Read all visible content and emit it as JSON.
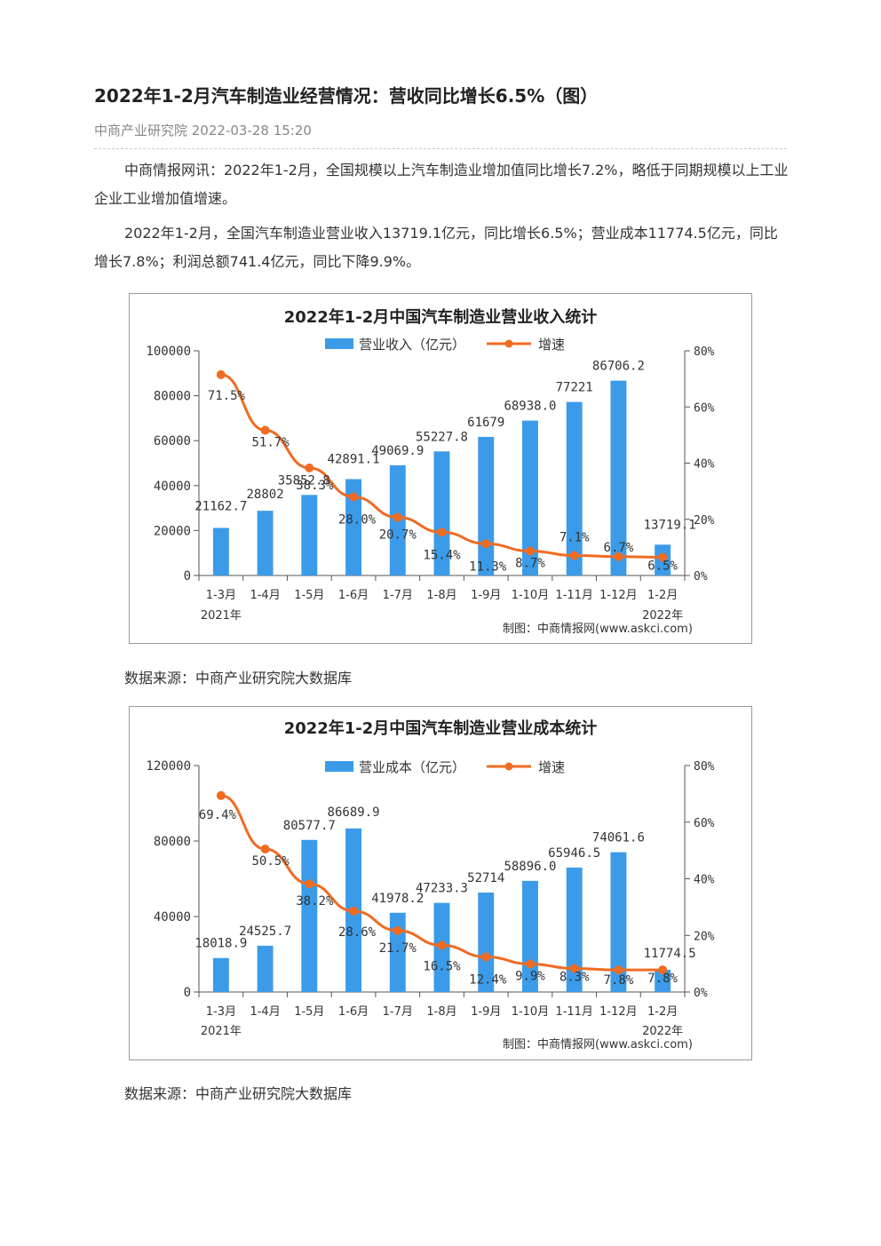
{
  "article": {
    "title": "2022年1-2月汽车制造业经营情况：营收同比增长6.5%（图）",
    "meta": "中商产业研究院 2022-03-28 15:20",
    "para1": "中商情报网讯：2022年1-2月，全国规模以上汽车制造业增加值同比增长7.2%，略低于同期规模以上工业企业工业增加值增速。",
    "para2": "2022年1-2月，全国汽车制造业营业收入13719.1亿元，同比增长6.5%；营业成本11774.5亿元，同比增长7.8%；利润总额741.4亿元，同比下降9.9%。",
    "source1": "数据来源：中商产业研究院大数据库",
    "source2": "数据来源：中商产业研究院大数据库"
  },
  "colors": {
    "bar": "#3b9be8",
    "line": "#f06b22",
    "axis": "#555555"
  },
  "chart_data": [
    {
      "type": "bar+line",
      "title": "2022年1-2月中国汽车制造业营业收入统计",
      "categories": [
        "1-3月",
        "1-4月",
        "1-5月",
        "1-6月",
        "1-7月",
        "1-8月",
        "1-9月",
        "1-10月",
        "1-11月",
        "1-12月",
        "1-2月"
      ],
      "year_labels": {
        "first": "2021年",
        "last": "2022年"
      },
      "series": [
        {
          "name": "营业收入（亿元）",
          "type": "bar",
          "axis": "left",
          "values": [
            21162.7,
            28802,
            35852.8,
            42891.1,
            49069.9,
            55227.8,
            61679,
            68938.0,
            77221,
            86706.2,
            13719.1
          ],
          "labels": [
            "21162.7",
            "28802",
            "35852.8",
            "42891.1",
            "49069.9",
            "55227.8",
            "61679",
            "68938.0",
            "77221",
            "86706.2",
            "13719.1"
          ]
        },
        {
          "name": "增速",
          "type": "line",
          "axis": "right",
          "values": [
            71.5,
            51.7,
            38.3,
            28.0,
            20.7,
            15.4,
            11.3,
            8.7,
            7.1,
            6.7,
            6.5
          ],
          "labels": [
            "71.5%",
            "51.7%",
            "38.3%",
            "28.0%",
            "20.7%",
            "15.4%",
            "11.3%",
            "8.7%",
            "7.1%",
            "6.7%",
            "6.5%"
          ]
        }
      ],
      "left_ticks": [
        "0",
        "20000",
        "40000",
        "60000",
        "80000",
        "100000"
      ],
      "left_range": [
        0,
        100000
      ],
      "right_ticks": [
        "0%",
        "20%",
        "40%",
        "60%",
        "80%"
      ],
      "right_range": [
        0,
        80
      ],
      "credit": "制图：中商情报网(www.askci.com)",
      "legend": "top-center"
    },
    {
      "type": "bar+line",
      "title": "2022年1-2月中国汽车制造业营业成本统计",
      "categories": [
        "1-3月",
        "1-4月",
        "1-5月",
        "1-6月",
        "1-7月",
        "1-8月",
        "1-9月",
        "1-10月",
        "1-11月",
        "1-12月",
        "1-2月"
      ],
      "year_labels": {
        "first": "2021年",
        "last": "2022年"
      },
      "series": [
        {
          "name": "营业成本（亿元）",
          "type": "bar",
          "axis": "left",
          "values": [
            18018.9,
            24525.7,
            80577.7,
            86689.9,
            41978.2,
            47233.3,
            52714,
            58896.0,
            65946.5,
            74061.6,
            11774.5
          ],
          "labels": [
            "18018.9",
            "24525.7",
            "80577.7",
            "86689.9",
            "41978.2",
            "47233.3",
            "52714",
            "58896.0",
            "65946.5",
            "74061.6",
            "11774.5"
          ]
        },
        {
          "name": "增速",
          "type": "line",
          "axis": "right",
          "values": [
            69.4,
            50.5,
            38.2,
            28.6,
            21.7,
            16.5,
            12.4,
            9.9,
            8.3,
            7.8,
            7.8
          ],
          "labels": [
            "69.4%",
            "50.5%",
            "38.2%",
            "28.6%",
            "21.7%",
            "16.5%",
            "12.4%",
            "9.9%",
            "8.3%",
            "7.8%",
            "7.8%"
          ]
        }
      ],
      "left_ticks": [
        "0",
        "40000",
        "80000",
        "120000"
      ],
      "left_range": [
        0,
        120000
      ],
      "right_ticks": [
        "0%",
        "20%",
        "40%",
        "60%",
        "80%"
      ],
      "right_range": [
        0,
        80
      ],
      "credit": "制图：中商情报网(www.askci.com)",
      "legend": "top-center"
    }
  ]
}
